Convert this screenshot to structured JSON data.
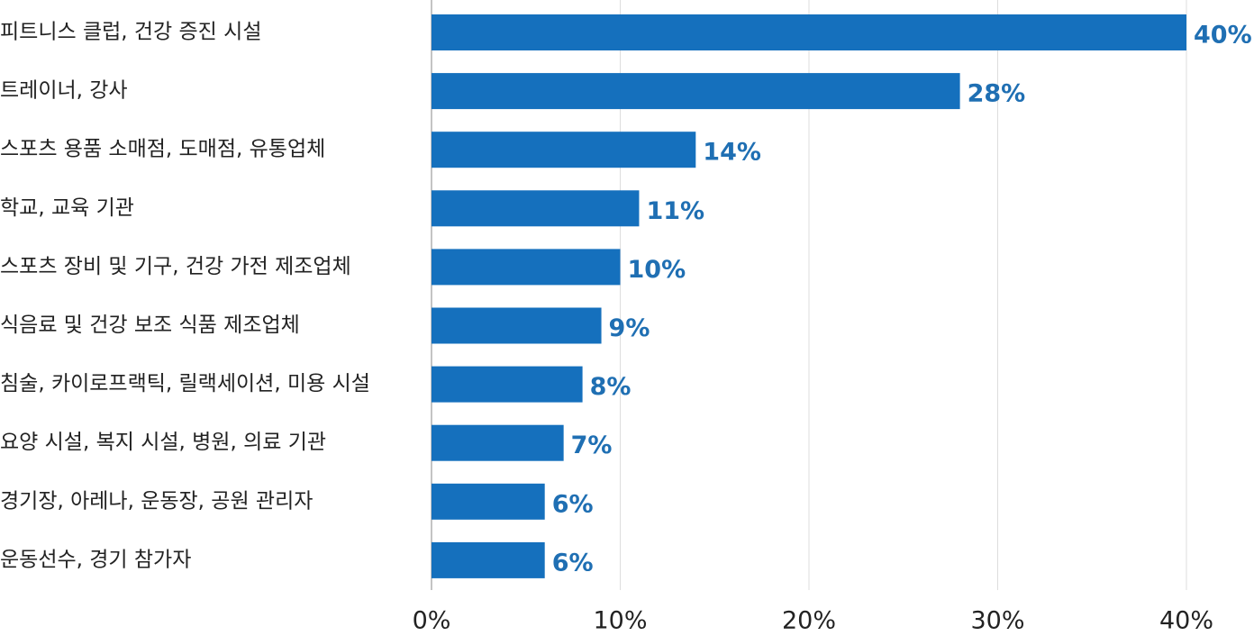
{
  "chart_data": {
    "type": "hbar",
    "categories": [
      "피트니스 클럽, 건강 증진 시설",
      "트레이너, 강사",
      "스포츠 용품 소매점, 도매점, 유통업체",
      "학교, 교육 기관",
      "스포츠 장비 및 기구, 건강 가전 제조업체",
      "식음료 및 건강 보조 식품 제조업체",
      "침술, 카이로프랙틱, 릴랙세이션, 미용 시설",
      "요양 시설, 복지 시설, 병원, 의료 기관",
      "경기장, 아레나, 운동장, 공원 관리자",
      "운동선수, 경기 참가자"
    ],
    "values": [
      40,
      28,
      14,
      11,
      10,
      9,
      8,
      7,
      6,
      6
    ],
    "value_labels": [
      "40%",
      "28%",
      "14%",
      "11%",
      "10%",
      "9%",
      "8%",
      "7%",
      "6%",
      "6%"
    ],
    "color": "#1570bd",
    "xlim": [
      0,
      40
    ],
    "xticks": [
      {
        "value": 0,
        "label": "0%"
      },
      {
        "value": 10,
        "label": "10%"
      },
      {
        "value": 20,
        "label": "20%"
      },
      {
        "value": 30,
        "label": "30%"
      },
      {
        "value": 40,
        "label": "40%"
      }
    ],
    "grid": true
  }
}
